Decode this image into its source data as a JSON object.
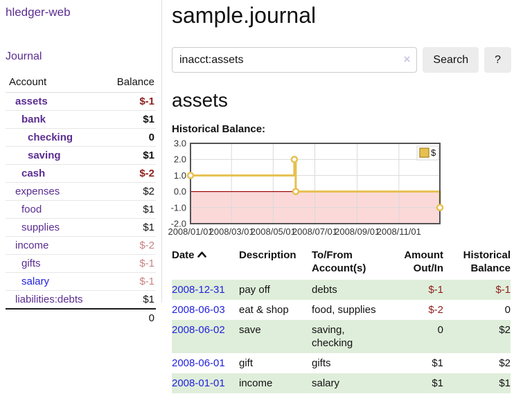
{
  "app": {
    "title": "hledger-web"
  },
  "sidebar": {
    "journal_link": "Journal",
    "account_table": {
      "account_header": "Account",
      "balance_header": "Balance",
      "rows": [
        {
          "name": "assets",
          "balance": "$-1",
          "indent": 0,
          "bold": true,
          "balance_style": "neg-strong"
        },
        {
          "name": "bank",
          "balance": "$1",
          "indent": 1,
          "bold": true,
          "balance_style": "pos"
        },
        {
          "name": "checking",
          "balance": "0",
          "indent": 2,
          "bold": true,
          "balance_style": "pos"
        },
        {
          "name": "saving",
          "balance": "$1",
          "indent": 2,
          "bold": true,
          "balance_style": "pos"
        },
        {
          "name": "cash",
          "balance": "$-2",
          "indent": 1,
          "bold": true,
          "balance_style": "neg-strong"
        },
        {
          "name": "expenses",
          "balance": "$2",
          "indent": 0,
          "bold": false,
          "balance_style": "pos"
        },
        {
          "name": "food",
          "balance": "$1",
          "indent": 1,
          "bold": false,
          "balance_style": "pos"
        },
        {
          "name": "supplies",
          "balance": "$1",
          "indent": 1,
          "bold": false,
          "balance_style": "pos"
        },
        {
          "name": "income",
          "balance": "$-2",
          "indent": 0,
          "bold": false,
          "balance_style": "neg-soft"
        },
        {
          "name": "gifts",
          "balance": "$-1",
          "indent": 1,
          "bold": false,
          "balance_style": "neg-soft"
        },
        {
          "name": "salary",
          "balance": "$-1",
          "indent": 1,
          "bold": false,
          "balance_style": "neg-soft",
          "link_style": "blue"
        },
        {
          "name": "liabilities:debts",
          "balance": "$1",
          "indent": 0,
          "bold": false,
          "balance_style": "pos"
        }
      ],
      "total": "0"
    }
  },
  "main": {
    "title": "sample.journal",
    "search": {
      "value": "inacct:assets",
      "clear_icon": "×",
      "search_button": "Search",
      "help_button": "?"
    },
    "account_heading": "assets",
    "section_label": "Historical Balance:"
  },
  "chart_data": {
    "type": "line",
    "step": true,
    "title": "Historical Balance",
    "series": [
      {
        "name": "$",
        "points": [
          {
            "date": "2008-01-01",
            "value": 1
          },
          {
            "date": "2008-06-01",
            "value": 2
          },
          {
            "date": "2008-06-02",
            "value": 2
          },
          {
            "date": "2008-06-03",
            "value": 0
          },
          {
            "date": "2008-12-31",
            "value": -1
          }
        ]
      }
    ],
    "x_range": [
      "2008-01-01",
      "2008-12-31"
    ],
    "ylim": [
      -2,
      3
    ],
    "x_ticks": [
      "2008/01/01",
      "2008/03/01",
      "2008/05/01",
      "2008/07/01",
      "2008/09/01",
      "2008/11/01"
    ],
    "y_ticks": [
      "3.0",
      "2.0",
      "1.0",
      "0.0",
      "-1.0",
      "-2.0"
    ],
    "legend": {
      "label": "$",
      "position": "top-right"
    },
    "grid": true,
    "colors": {
      "line": "#e6c050",
      "marker_fill": "#ffffff",
      "legend_box": "#e6c050",
      "negative_region": "#fbd9d9",
      "zero_line": "#9c0d0d",
      "grid": "#d9d9d9",
      "border": "#545454"
    }
  },
  "register": {
    "headers": {
      "date": "Date",
      "description": "Description",
      "account": "To/From Account(s)",
      "amount": "Amount Out/In",
      "balance": "Historical Balance"
    },
    "rows": [
      {
        "date": "2008-12-31",
        "description": "pay off",
        "accounts": "debts",
        "amount": "$-1",
        "amount_neg": true,
        "balance": "$-1",
        "balance_neg": true
      },
      {
        "date": "2008-06-03",
        "description": "eat & shop",
        "accounts": "food, supplies",
        "amount": "$-2",
        "amount_neg": true,
        "balance": "0",
        "balance_neg": false
      },
      {
        "date": "2008-06-02",
        "description": "save",
        "accounts": "saving, checking",
        "amount": "0",
        "amount_neg": false,
        "balance": "$2",
        "balance_neg": false
      },
      {
        "date": "2008-06-01",
        "description": "gift",
        "accounts": "gifts",
        "amount": "$1",
        "amount_neg": false,
        "balance": "$2",
        "balance_neg": false
      },
      {
        "date": "2008-01-01",
        "description": "income",
        "accounts": "salary",
        "amount": "$1",
        "amount_neg": false,
        "balance": "$1",
        "balance_neg": false
      }
    ]
  }
}
